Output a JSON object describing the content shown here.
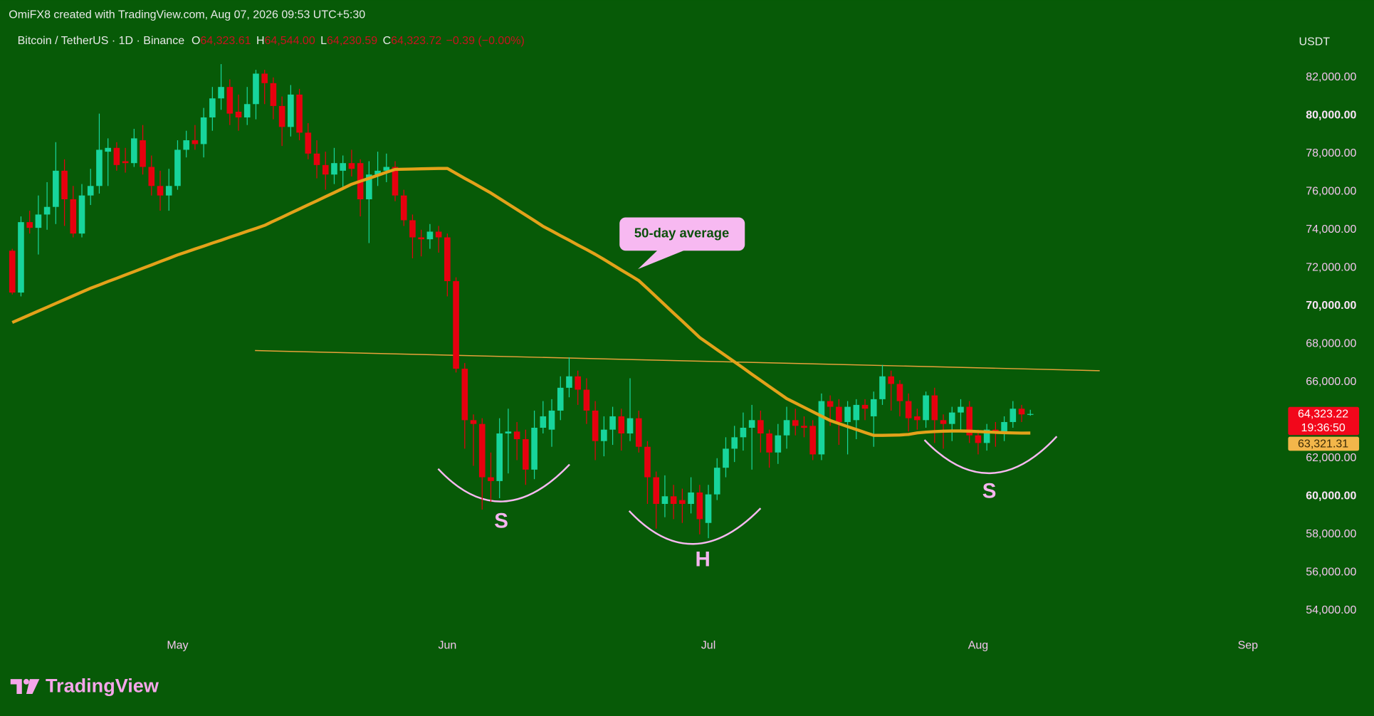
{
  "chart_data": {
    "type": "candlestick",
    "attribution": "OmiFX8 created with TradingView.com, Aug 07, 2026 09:53 UTC+5:30",
    "symbol": "Bitcoin / TetherUS · 1D · Binance",
    "ohlc_header": [
      {
        "key": "O",
        "value": "64,323.61"
      },
      {
        "key": "H",
        "value": "64,544.00"
      },
      {
        "key": "L",
        "value": "64,230.59"
      },
      {
        "key": "C",
        "value": "64,323.72"
      }
    ],
    "change": "−0.39 (−0.00%)",
    "currency": "USDT",
    "brand": "TradingView",
    "up_color": "#17d59c",
    "down_color": "#e6000f",
    "grid": false,
    "categories": [
      null,
      null,
      null,
      null,
      null,
      null,
      null,
      null,
      null,
      null,
      null,
      null,
      null,
      null,
      null,
      null,
      null,
      null,
      null,
      "May",
      null,
      null,
      null,
      null,
      null,
      null,
      null,
      null,
      null,
      null,
      null,
      null,
      null,
      null,
      null,
      null,
      null,
      null,
      null,
      null,
      null,
      null,
      null,
      null,
      null,
      null,
      null,
      null,
      null,
      null,
      "Jun",
      null,
      null,
      null,
      null,
      null,
      null,
      null,
      null,
      null,
      null,
      null,
      null,
      null,
      null,
      null,
      null,
      null,
      null,
      null,
      null,
      null,
      null,
      null,
      null,
      null,
      null,
      null,
      null,
      null,
      "Jul",
      null,
      null,
      null,
      null,
      null,
      null,
      null,
      null,
      null,
      null,
      null,
      null,
      null,
      null,
      null,
      null,
      null,
      null,
      null,
      null,
      null,
      null,
      null,
      null,
      null,
      null,
      null,
      null,
      null,
      null,
      "Aug",
      null,
      null,
      null,
      null,
      null,
      null,
      null,
      null,
      null,
      null,
      null,
      null,
      null,
      null,
      null,
      null,
      null,
      null,
      null,
      null,
      null,
      null,
      null,
      null,
      null,
      null,
      null,
      null,
      null,
      null,
      "Sep"
    ],
    "open": [
      72900,
      70700,
      74400,
      74100,
      74800,
      75200,
      77100,
      75600,
      73800,
      75800,
      76300,
      78100,
      78300,
      77600,
      77500,
      78700,
      77300,
      76300,
      75800,
      76300,
      78200,
      78700,
      78500,
      79900,
      80900,
      81500,
      80200,
      79900,
      80600,
      82200,
      81700,
      80500,
      79400,
      81100,
      79100,
      78000,
      77400,
      76900,
      77100,
      77500,
      77500,
      75600,
      76900,
      77100,
      77300,
      75800,
      74500,
      73600,
      73500,
      73900,
      73600,
      71300,
      66700,
      64000,
      63800,
      61000,
      60800,
      63300,
      63400,
      63000,
      61400,
      63600,
      63500,
      64500,
      65700,
      66300,
      65600,
      64500,
      62900,
      63500,
      64200,
      63300,
      64100,
      62600,
      61000,
      59600,
      60000,
      59800,
      59600,
      60200,
      58600,
      60100,
      61500,
      62500,
      63100,
      63600,
      64000,
      63300,
      62300,
      63200,
      64000,
      63700,
      63700,
      62200,
      65000,
      64700,
      63900,
      64000,
      64800,
      64200,
      65100,
      66300,
      65900,
      65000,
      64200,
      64000,
      65300,
      64000,
      63800,
      64400,
      64700,
      63200,
      62800,
      63500,
      63300,
      63900,
      64600,
      64323.61,
      null,
      null,
      null,
      null,
      null,
      null,
      null,
      null,
      null,
      null,
      null,
      null,
      null,
      null,
      null,
      null,
      null,
      null,
      null,
      null,
      null,
      null,
      null,
      null,
      null
    ],
    "high": [
      73000,
      74700,
      75000,
      75800,
      76500,
      78600,
      77700,
      76300,
      76400,
      77200,
      80100,
      78800,
      78600,
      78300,
      79300,
      79500,
      77900,
      77100,
      77200,
      78700,
      79200,
      79500,
      80400,
      81500,
      82700,
      81900,
      81100,
      81500,
      82400,
      82400,
      82000,
      81000,
      81600,
      81400,
      79600,
      78700,
      78100,
      78300,
      77900,
      78200,
      77700,
      77600,
      78100,
      78000,
      77600,
      76100,
      74800,
      74000,
      74300,
      74200,
      73800,
      71500,
      67000,
      64300,
      64100,
      62300,
      64100,
      64600,
      63900,
      63500,
      64500,
      65000,
      65100,
      66300,
      67300,
      66600,
      66200,
      65000,
      64200,
      64700,
      64600,
      66200,
      64500,
      62900,
      61300,
      61100,
      60600,
      60400,
      61000,
      60600,
      60600,
      62000,
      63100,
      63700,
      64400,
      64800,
      64500,
      63500,
      63800,
      64700,
      64600,
      64200,
      64000,
      65400,
      65300,
      65100,
      65000,
      65100,
      65100,
      65500,
      66900,
      66600,
      66100,
      65400,
      64600,
      65500,
      65700,
      64300,
      64700,
      65100,
      65000,
      63500,
      63800,
      63900,
      64200,
      65000,
      64800,
      64544,
      null,
      null,
      null,
      null,
      null,
      null,
      null,
      null,
      null,
      null,
      null,
      null,
      null,
      null,
      null,
      null,
      null,
      null,
      null,
      null,
      null,
      null,
      null,
      null,
      null
    ],
    "low": [
      70600,
      70500,
      73800,
      72700,
      74000,
      74300,
      74200,
      73600,
      73600,
      75300,
      75900,
      76300,
      77100,
      77000,
      77300,
      76900,
      75800,
      75000,
      75000,
      76100,
      77800,
      78200,
      77800,
      79200,
      80300,
      79500,
      79200,
      79500,
      79800,
      80600,
      79800,
      78400,
      78900,
      78700,
      77700,
      76700,
      76100,
      76400,
      76200,
      76800,
      74700,
      73300,
      76300,
      76500,
      75500,
      74200,
      72500,
      72600,
      73000,
      72800,
      70500,
      66500,
      62500,
      61600,
      59300,
      59700,
      59900,
      61200,
      61900,
      60600,
      60900,
      63300,
      62600,
      64000,
      65200,
      64800,
      63800,
      61900,
      62100,
      62700,
      62400,
      62900,
      62300,
      59600,
      58300,
      58900,
      58800,
      58600,
      59100,
      58000,
      57800,
      59800,
      61000,
      61800,
      62400,
      61400,
      62300,
      61500,
      61700,
      62500,
      63200,
      63100,
      61900,
      61900,
      63700,
      62700,
      62200,
      63000,
      64000,
      62600,
      64800,
      64500,
      64200,
      63400,
      63500,
      63600,
      62800,
      62500,
      62900,
      63500,
      62800,
      62200,
      62400,
      62600,
      62900,
      63600,
      63900,
      64230.59,
      null,
      null,
      null,
      null,
      null,
      null,
      null,
      null,
      null,
      null,
      null,
      null,
      null,
      null,
      null,
      null,
      null,
      null,
      null,
      null,
      null,
      null,
      null,
      null,
      null
    ],
    "close": [
      70700,
      74400,
      74100,
      74800,
      75200,
      77100,
      75600,
      73800,
      75800,
      76300,
      78200,
      78300,
      77400,
      77500,
      78800,
      77300,
      76300,
      75800,
      76300,
      78200,
      78700,
      78500,
      79900,
      80900,
      81500,
      80100,
      79900,
      80600,
      82200,
      81700,
      80500,
      79400,
      81100,
      79100,
      78000,
      77400,
      76900,
      77500,
      77500,
      77200,
      75600,
      76900,
      77100,
      77300,
      75800,
      74500,
      73600,
      73500,
      73900,
      73600,
      71300,
      66700,
      64000,
      63800,
      61000,
      60800,
      63300,
      63400,
      63000,
      61400,
      63600,
      64200,
      64500,
      65700,
      66300,
      65600,
      64500,
      62900,
      63500,
      64200,
      63300,
      64100,
      62600,
      61000,
      59600,
      60000,
      59600,
      59600,
      60200,
      58800,
      60100,
      61500,
      62500,
      63100,
      63600,
      64000,
      63300,
      62300,
      63200,
      64000,
      63700,
      63600,
      62200,
      65000,
      64700,
      63900,
      64700,
      64800,
      64600,
      65100,
      66300,
      65900,
      65000,
      64100,
      64000,
      65300,
      64000,
      63800,
      64400,
      64700,
      63200,
      62800,
      63500,
      63300,
      63900,
      64600,
      64300,
      64323.72,
      null,
      null,
      null,
      null,
      null,
      null,
      null,
      null,
      null,
      null,
      null,
      null,
      null,
      null,
      null,
      null,
      null,
      null,
      null,
      null,
      null,
      null,
      null,
      null,
      null
    ],
    "moving_average": {
      "color": "#e3a21a",
      "values": [
        69130,
        69330,
        69530,
        69730,
        69930,
        70130,
        70330,
        70530,
        70730,
        70930,
        71100,
        71280,
        71450,
        71630,
        71800,
        71980,
        72150,
        72330,
        72500,
        72680,
        72830,
        72990,
        73140,
        73300,
        73450,
        73610,
        73760,
        73920,
        74070,
        74230,
        74450,
        74660,
        74880,
        75090,
        75310,
        75520,
        75740,
        75950,
        76170,
        76390,
        76550,
        76700,
        76860,
        77020,
        77170,
        77180,
        77190,
        77200,
        77210,
        77220,
        77220,
        76960,
        76700,
        76450,
        76190,
        75930,
        75640,
        75350,
        75060,
        74770,
        74480,
        74180,
        73940,
        73690,
        73450,
        73200,
        72960,
        72710,
        72440,
        72160,
        71880,
        71610,
        71330,
        70910,
        70480,
        70050,
        69620,
        69200,
        68770,
        68340,
        68020,
        67700,
        67380,
        67060,
        66740,
        66410,
        66090,
        65770,
        65450,
        65130,
        64900,
        64670,
        64440,
        64210,
        63980,
        63820,
        63660,
        63510,
        63350,
        63200,
        63200,
        63210,
        63220,
        63250,
        63330,
        63370,
        63400,
        63420,
        63430,
        63430,
        63420,
        63400,
        63380,
        63360,
        63340,
        63330,
        63320,
        63321.31,
        null,
        null,
        null,
        null,
        null,
        null,
        null,
        null,
        null,
        null,
        null,
        null,
        null,
        null,
        null,
        null,
        null,
        null,
        null,
        null,
        null,
        null,
        null,
        null,
        null
      ]
    },
    "price_tags": [
      {
        "value": 64323.22,
        "label": "64,323.22",
        "sublabel": "19:36:50",
        "color": "#f2071b"
      },
      {
        "value": 63321.31,
        "label": "63,321.31",
        "color": "#f3b64a"
      }
    ],
    "annotations": {
      "callout": "50-day average",
      "left_shoulder": "S",
      "head": "H",
      "right_shoulder": "S"
    },
    "ylim": [
      52700,
      84450
    ],
    "yticks": [
      {
        "value": 54000,
        "label": "54,000.00"
      },
      {
        "value": 56000,
        "label": "56,000.00"
      },
      {
        "value": 58000,
        "label": "58,000.00"
      },
      {
        "value": 60000,
        "label": "60,000.00"
      },
      {
        "value": 62000,
        "label": "62,000.00"
      },
      {
        "value": 64000,
        "label": "64,000.00"
      },
      {
        "value": 66000,
        "label": "66,000.00"
      },
      {
        "value": 68000,
        "label": "68,000.00"
      },
      {
        "value": 70000,
        "label": "70,000.00"
      },
      {
        "value": 72000,
        "label": "72,000.00"
      },
      {
        "value": 74000,
        "label": "74,000.00"
      },
      {
        "value": 76000,
        "label": "76,000.00"
      },
      {
        "value": 78000,
        "label": "78,000.00"
      },
      {
        "value": 80000,
        "label": "80,000.00"
      },
      {
        "value": 82000,
        "label": "82,000.00"
      }
    ]
  }
}
